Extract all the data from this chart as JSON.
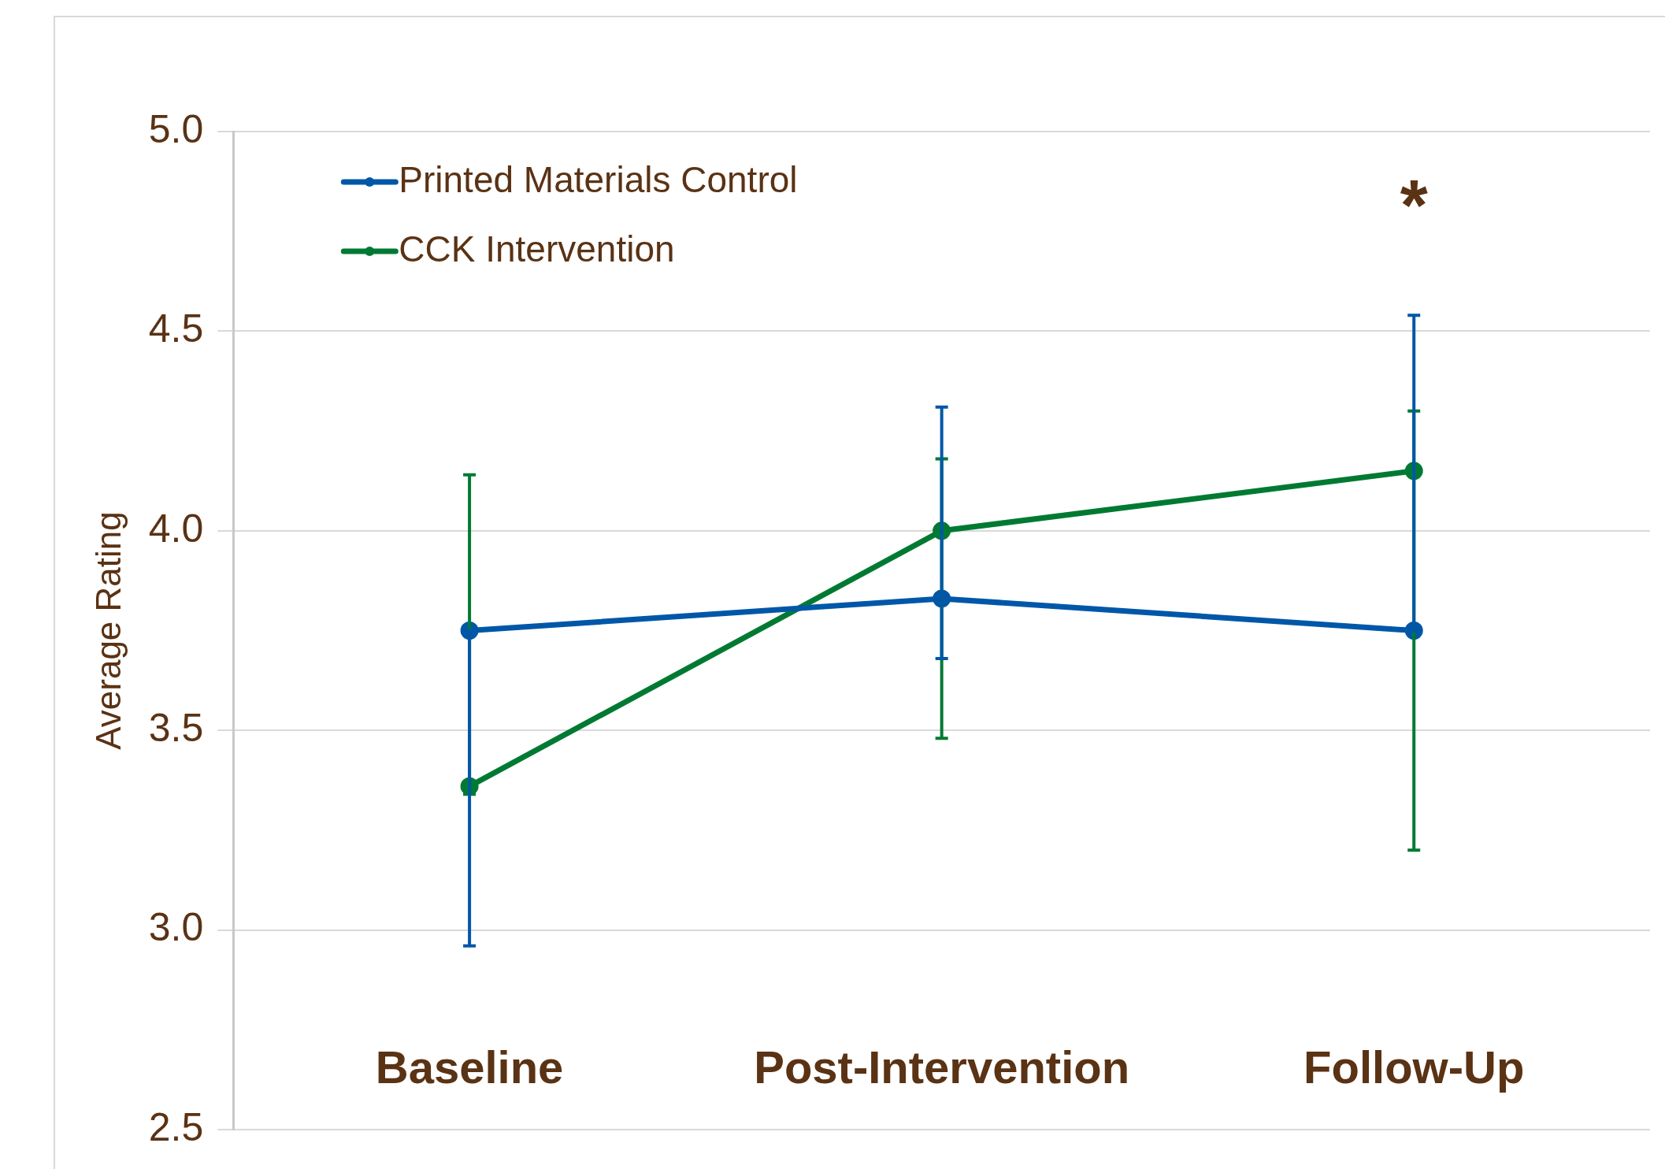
{
  "chart_data": {
    "type": "line",
    "ylabel": "Average Rating",
    "categories": [
      "Baseline",
      "Post-Intervention",
      "Follow-Up"
    ],
    "series": [
      {
        "name": "Printed Materials Control",
        "color": "#0057a8",
        "values": [
          3.75,
          3.83,
          3.75
        ],
        "errors": [
          [
            2.96,
            3.75
          ],
          [
            3.68,
            4.31
          ],
          [
            3.75,
            4.54
          ]
        ]
      },
      {
        "name": "CCK Intervention",
        "color": "#007a33",
        "values": [
          3.36,
          4.0,
          4.15
        ],
        "errors": [
          [
            3.34,
            4.14
          ],
          [
            3.48,
            4.18
          ],
          [
            3.2,
            4.3
          ]
        ]
      }
    ],
    "ylim": [
      2.5,
      5.0
    ],
    "yticks": [
      {
        "value": 2.5,
        "label": "2.5"
      },
      {
        "value": 3.0,
        "label": "3.0"
      },
      {
        "value": 3.5,
        "label": "3.5"
      },
      {
        "value": 4.0,
        "label": "4.0"
      },
      {
        "value": 4.5,
        "label": "4.5"
      },
      {
        "value": 5.0,
        "label": "5.0"
      }
    ],
    "grid": "y",
    "legend": "top left",
    "marker": "circle",
    "line_style": "solid",
    "annotations": [
      "*"
    ]
  }
}
